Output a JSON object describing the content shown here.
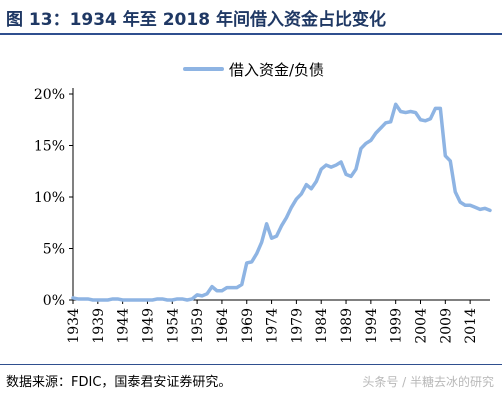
{
  "header": {
    "title": "图 13：1934 年至 2018 年间借入资金占比变化"
  },
  "footer": {
    "source": "数据来源：FDIC，国泰君安证券研究。",
    "watermark": "头条号 / 半糖去冰的研究"
  },
  "colors": {
    "title": "#1f3864",
    "rule": "#2f4f8f",
    "series": "#8eb4e3"
  },
  "chart_data": {
    "type": "line",
    "title": "",
    "xlabel": "",
    "ylabel": "",
    "legend_position": "top-center",
    "grid": false,
    "ylim": [
      0,
      20
    ],
    "xlim": [
      1934,
      2018
    ],
    "y_ticks": [
      "0%",
      "5%",
      "10%",
      "15%",
      "20%"
    ],
    "x_ticks": [
      "1934",
      "1939",
      "1944",
      "1949",
      "1954",
      "1959",
      "1964",
      "1969",
      "1974",
      "1979",
      "1984",
      "1989",
      "1994",
      "1999",
      "2004",
      "2009",
      "2014"
    ],
    "series": [
      {
        "name": "借入资金/负债",
        "x": [
          1934,
          1935,
          1936,
          1937,
          1938,
          1939,
          1940,
          1941,
          1942,
          1943,
          1944,
          1945,
          1946,
          1947,
          1948,
          1949,
          1950,
          1951,
          1952,
          1953,
          1954,
          1955,
          1956,
          1957,
          1958,
          1959,
          1960,
          1961,
          1962,
          1963,
          1964,
          1965,
          1966,
          1967,
          1968,
          1969,
          1970,
          1971,
          1972,
          1973,
          1974,
          1975,
          1976,
          1977,
          1978,
          1979,
          1980,
          1981,
          1982,
          1983,
          1984,
          1985,
          1986,
          1987,
          1988,
          1989,
          1990,
          1991,
          1992,
          1993,
          1994,
          1995,
          1996,
          1997,
          1998,
          1999,
          2000,
          2001,
          2002,
          2003,
          2004,
          2005,
          2006,
          2007,
          2008,
          2009,
          2010,
          2011,
          2012,
          2013,
          2014,
          2015,
          2016,
          2017,
          2018
        ],
        "y": [
          0.2,
          0.1,
          0.1,
          0.1,
          0.0,
          0.0,
          0.0,
          0.0,
          0.1,
          0.1,
          0.0,
          0.0,
          0.0,
          0.0,
          0.0,
          0.0,
          0.0,
          0.1,
          0.1,
          0.0,
          0.0,
          0.1,
          0.1,
          0.0,
          0.1,
          0.5,
          0.4,
          0.6,
          1.3,
          0.9,
          0.9,
          1.2,
          1.2,
          1.2,
          1.5,
          3.6,
          3.7,
          4.5,
          5.6,
          7.4,
          6.0,
          6.2,
          7.2,
          8.0,
          9.0,
          9.8,
          10.3,
          11.2,
          10.8,
          11.5,
          12.7,
          13.1,
          12.9,
          13.1,
          13.4,
          12.2,
          12.0,
          12.7,
          14.7,
          15.2,
          15.5,
          16.2,
          16.7,
          17.2,
          17.3,
          19.0,
          18.3,
          18.2,
          18.3,
          18.2,
          17.5,
          17.4,
          17.6,
          18.6,
          18.6,
          14.0,
          13.5,
          10.5,
          9.5,
          9.2,
          9.2,
          9.0,
          8.8,
          8.9,
          8.7
        ]
      }
    ]
  }
}
